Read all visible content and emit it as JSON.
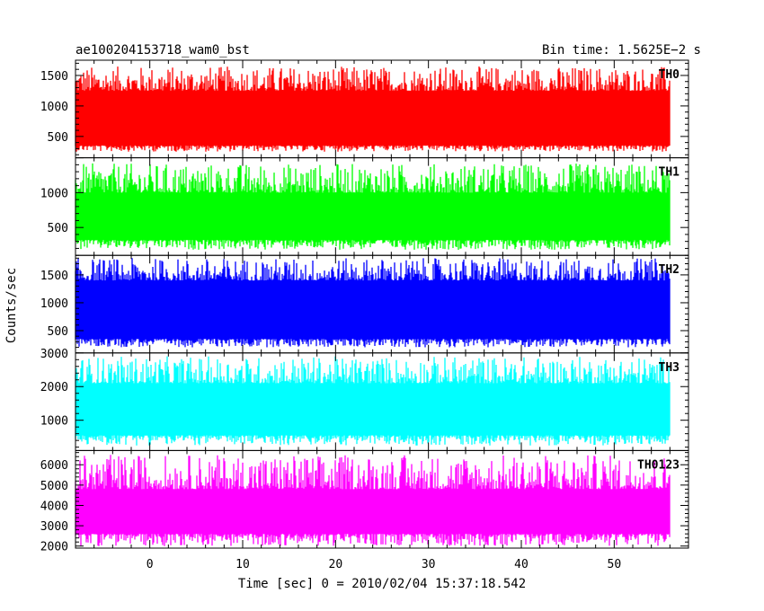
{
  "header": {
    "left_title": "ae100204153718_wam0_bst",
    "right_title": "Bin time: 1.5625E−2 s"
  },
  "chart_data": {
    "type": "line",
    "title": "ae100204153718_wam0_bst",
    "subtitle": "Bin time: 1.5625E−2 s",
    "xlabel": "Time [sec] 0 = 2010/02/04 15:37:18.542",
    "ylabel": "Counts/sec",
    "xlim": [
      -8,
      58
    ],
    "data_x_range": [
      -8,
      56
    ],
    "bin_time_s": 0.015625,
    "x_ticks": [
      0,
      10,
      20,
      30,
      40,
      50
    ],
    "x_tick_labels": [
      "0",
      "10",
      "20",
      "30",
      "40",
      "50"
    ],
    "grid": false,
    "legend": "none",
    "panels": [
      {
        "name": "TH0",
        "color": "#ff0000",
        "ylim": [
          150,
          1750
        ],
        "yticks": [
          500,
          1000,
          1500
        ],
        "ytick_labels": [
          "500",
          "1000",
          "1500"
        ],
        "approx_band": {
          "low": 250,
          "core_low": 350,
          "core_high": 1250,
          "high": 1650
        }
      },
      {
        "name": "TH1",
        "color": "#00ff00",
        "ylim": [
          100,
          1500
        ],
        "yticks": [
          500,
          1000
        ],
        "ytick_labels": [
          "500",
          "1000"
        ],
        "approx_band": {
          "low": 180,
          "core_low": 320,
          "core_high": 1000,
          "high": 1420
        }
      },
      {
        "name": "TH2",
        "color": "#0000ff",
        "ylim": [
          100,
          1850
        ],
        "yticks": [
          500,
          1000,
          1500
        ],
        "ytick_labels": [
          "500",
          "1000",
          "1500"
        ],
        "approx_band": {
          "low": 200,
          "core_low": 350,
          "core_high": 1400,
          "high": 1800
        }
      },
      {
        "name": "TH3",
        "color": "#00ffff",
        "ylim": [
          100,
          3000
        ],
        "yticks": [
          1000,
          2000,
          3000
        ],
        "ytick_labels": [
          "1000",
          "2000",
          "3000"
        ],
        "approx_band": {
          "low": 250,
          "core_low": 550,
          "core_high": 2100,
          "high": 2900
        }
      },
      {
        "name": "TH0123",
        "color": "#ff00ff",
        "ylim": [
          1900,
          6700
        ],
        "yticks": [
          2000,
          3000,
          4000,
          5000,
          6000
        ],
        "ytick_labels": [
          "2000",
          "3000",
          "4000",
          "5000",
          "6000"
        ],
        "approx_band": {
          "low": 2000,
          "core_low": 2600,
          "core_high": 4800,
          "high": 6500
        }
      }
    ]
  }
}
